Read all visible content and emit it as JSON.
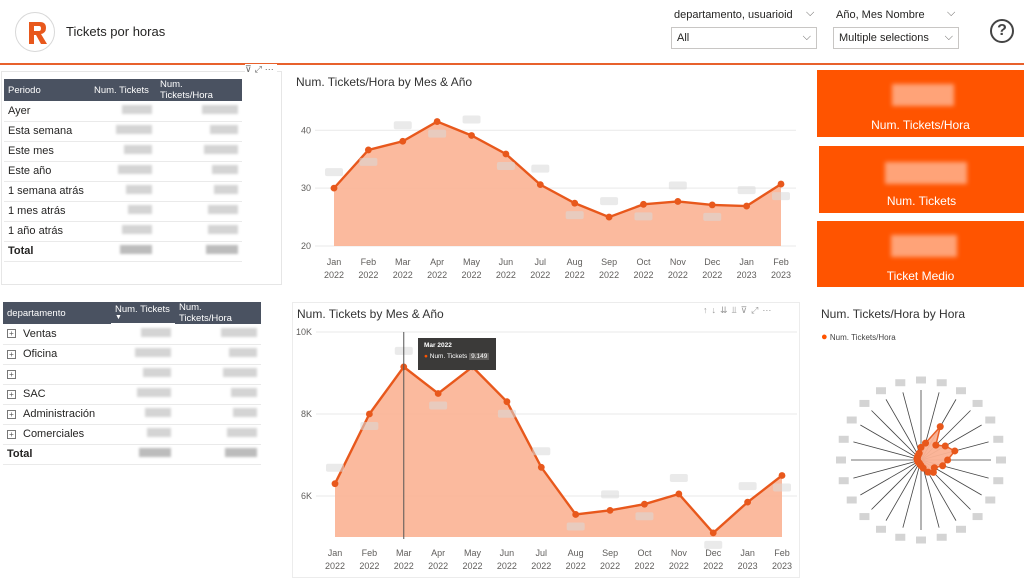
{
  "header": {
    "title": "Tickets por horas",
    "slicer1": {
      "label": "departamento, usuarioid",
      "value": "All"
    },
    "slicer2": {
      "label": "Año, Mes Nombre",
      "value": "Multiple selections"
    }
  },
  "colors": {
    "accent": "#ff5400",
    "line": "#e8581c",
    "area": "#fbb294",
    "table_header": "#4a5261"
  },
  "periodo_table": {
    "headers": [
      "Periodo",
      "Num. Tickets",
      "Num. Tickets/Hora"
    ],
    "rows": [
      "Ayer",
      "Esta semana",
      "Este mes",
      "Este año",
      "1 semana atrás",
      "1 mes atrás",
      "1 año atrás"
    ],
    "total": "Total"
  },
  "dept_table": {
    "headers": [
      "departamento",
      "Num. Tickets",
      "Num. Tickets/Hora"
    ],
    "rows": [
      "Ventas",
      "Oficina",
      "",
      "SAC",
      "Administración",
      "Comerciales"
    ],
    "total": "Total"
  },
  "cards": [
    {
      "label": "Num. Tickets/Hora"
    },
    {
      "label": "Num. Tickets"
    },
    {
      "label": "Ticket Medio"
    }
  ],
  "radial": {
    "title": "Num. Tickets/Hora by Hora",
    "legend": "Num. Tickets/Hora"
  },
  "tooltip": {
    "title": "Mar 2022",
    "series": "Num. Tickets",
    "value": "9.149"
  },
  "chart_data": [
    {
      "type": "area",
      "title": "Num. Tickets/Hora by Mes & Año",
      "categories": [
        "Jan|2022",
        "Feb|2022",
        "Mar|2022",
        "Apr|2022",
        "May|2022",
        "Jun|2022",
        "Jul|2022",
        "Aug|2022",
        "Sep|2022",
        "Oct|2022",
        "Nov|2022",
        "Dec|2022",
        "Jan|2023",
        "Feb|2023"
      ],
      "values": [
        30,
        36.6,
        38.1,
        41.5,
        39.1,
        35.9,
        30.6,
        27.4,
        25,
        27.2,
        27.7,
        27.1,
        26.9,
        30.7
      ],
      "yticks": [
        20,
        30,
        40
      ],
      "ylim": [
        20,
        43.5
      ]
    },
    {
      "type": "area",
      "title": "Num. Tickets by Mes & Año",
      "categories": [
        "Jan|2022",
        "Feb|2022",
        "Mar|2022",
        "Apr|2022",
        "May|2022",
        "Jun|2022",
        "Jul|2022",
        "Aug|2022",
        "Sep|2022",
        "Oct|2022",
        "Nov|2022",
        "Dec|2022",
        "Jan|2023",
        "Feb|2023"
      ],
      "values": [
        6300,
        8000,
        9149,
        8500,
        9150,
        8300,
        6700,
        5550,
        5650,
        5800,
        6050,
        5100,
        5850,
        6500
      ],
      "yticks": [
        6000,
        8000,
        10000
      ],
      "yticklabels": [
        "6K",
        "8K",
        "10K"
      ],
      "ylim": [
        5000,
        10000
      ]
    }
  ]
}
